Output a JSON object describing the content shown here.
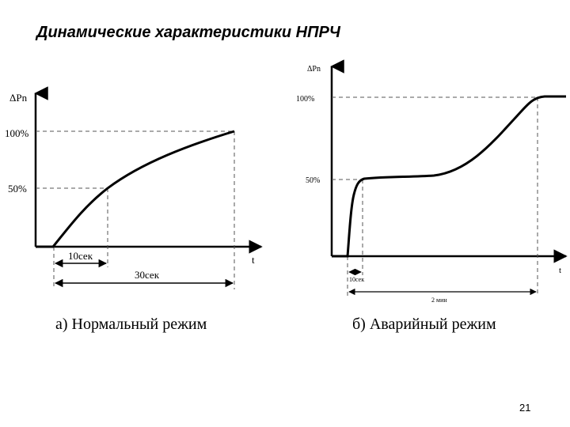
{
  "slide": {
    "title": "Динамические характеристики НПРЧ",
    "page_number": "21"
  },
  "diagram_a": {
    "y_axis_label": "ΔPn",
    "x_axis_label": "t",
    "tick_100": "100%",
    "tick_50": "50%",
    "interval_short": "10сек",
    "interval_long": "30сек",
    "caption": "а) Нормальный режим"
  },
  "diagram_b": {
    "y_axis_label": "ΔPn",
    "x_axis_label": "t",
    "tick_100": "100%",
    "tick_50": "50%",
    "interval_short": "10сек",
    "interval_long": "2 мин",
    "caption": "б) Аварийный режим"
  },
  "colors": {
    "line": "#000000",
    "dashed": "#555555"
  }
}
